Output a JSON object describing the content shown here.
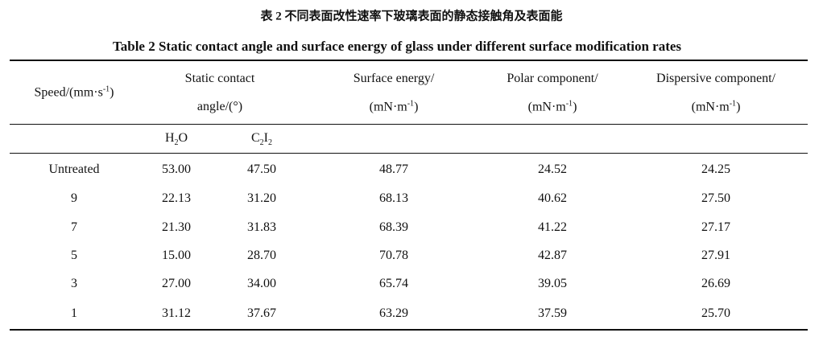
{
  "title_cn": "表 2  不同表面改性速率下玻璃表面的静态接触角及表面能",
  "title_en": "Table 2 Static contact angle and surface energy of glass under different surface modification rates",
  "table": {
    "header": [
      [
        [
          {
            "t": "Speed/(mm·s"
          },
          {
            "sup": "-1"
          },
          {
            "t": ")"
          }
        ]
      ],
      [
        [
          {
            "t": "Static contact"
          }
        ],
        [
          {
            "t": "angle/(°)"
          }
        ]
      ],
      [
        [
          {
            "t": "Surface energy/"
          }
        ],
        [
          {
            "t": "(mN·m"
          },
          {
            "sup": "-1"
          },
          {
            "t": ")"
          }
        ]
      ],
      [
        [
          {
            "t": "Polar component/"
          }
        ],
        [
          {
            "t": "(mN·m"
          },
          {
            "sup": "-1"
          },
          {
            "t": ")"
          }
        ]
      ],
      [
        [
          {
            "t": "Dispersive component/"
          }
        ],
        [
          {
            "t": "(mN·m"
          },
          {
            "sup": "-1"
          },
          {
            "t": ")"
          }
        ]
      ]
    ],
    "subheader": [
      [
        {
          "t": "H"
        },
        {
          "sub": "2"
        },
        {
          "t": "O"
        }
      ],
      [
        {
          "t": "C"
        },
        {
          "sub": "2"
        },
        {
          "t": "I"
        },
        {
          "sub": "2"
        }
      ]
    ],
    "rows": [
      [
        "Untreated",
        "53.00",
        "47.50",
        "48.77",
        "24.52",
        "24.25"
      ],
      [
        "9",
        "22.13",
        "31.20",
        "68.13",
        "40.62",
        "27.50"
      ],
      [
        "7",
        "21.30",
        "31.83",
        "68.39",
        "41.22",
        "27.17"
      ],
      [
        "5",
        "15.00",
        "28.70",
        "70.78",
        "42.87",
        "27.91"
      ],
      [
        "3",
        "27.00",
        "34.00",
        "65.74",
        "39.05",
        "26.69"
      ],
      [
        "1",
        "31.12",
        "37.67",
        "63.29",
        "37.59",
        "25.70"
      ]
    ]
  }
}
